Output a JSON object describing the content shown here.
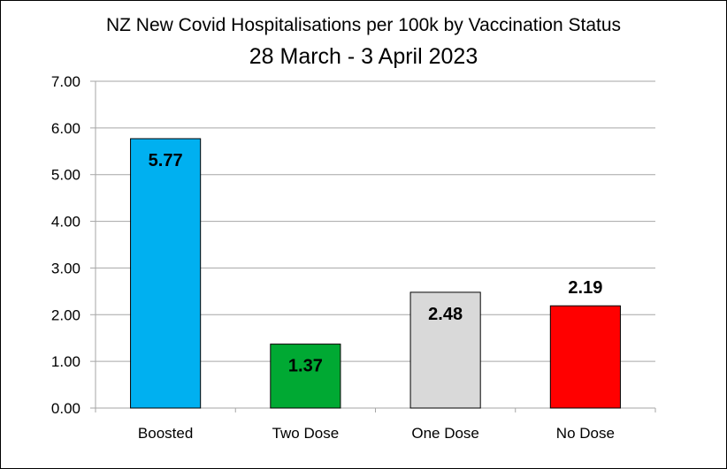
{
  "chart_data": {
    "type": "bar",
    "title": "NZ New Covid Hospitalisations per 100k by Vaccination Status",
    "subtitle": "28 March - 3 April 2023",
    "categories": [
      "Boosted",
      "Two Dose",
      "One Dose",
      "No Dose"
    ],
    "values": [
      5.77,
      1.37,
      2.48,
      2.19
    ],
    "data_labels": [
      "5.77",
      "1.37",
      "2.48",
      "2.19"
    ],
    "colors": [
      "#00b0f0",
      "#00a933",
      "#d9d9d9",
      "#ff0000"
    ],
    "ylim": [
      0,
      7
    ],
    "yticks": [
      0,
      1,
      2,
      3,
      4,
      5,
      6,
      7
    ],
    "ytick_labels": [
      "0.00",
      "1.00",
      "2.00",
      "3.00",
      "4.00",
      "5.00",
      "6.00",
      "7.00"
    ],
    "grid": true,
    "legend": "none",
    "xlabel": "",
    "ylabel": ""
  }
}
